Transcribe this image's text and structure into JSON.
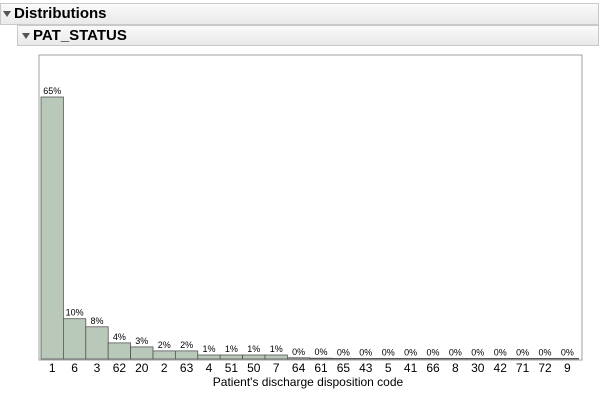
{
  "header": {
    "title": "Distributions"
  },
  "variable_header": {
    "title": "PAT_STATUS"
  },
  "icons": {
    "disclosure": "disclosure-triangle-icon"
  },
  "colors": {
    "bar_fill": "#b9c9b9",
    "bar_stroke": "#555555",
    "frame": "#a0a0a0"
  },
  "chart_data": {
    "type": "bar",
    "title": "",
    "xlabel": "Patient's discharge disposition code",
    "ylabel": "",
    "categories": [
      "1",
      "6",
      "3",
      "62",
      "20",
      "2",
      "63",
      "4",
      "51",
      "50",
      "7",
      "64",
      "61",
      "65",
      "43",
      "5",
      "41",
      "66",
      "8",
      "30",
      "42",
      "71",
      "72",
      "9"
    ],
    "values": [
      65,
      10,
      8,
      4,
      3,
      2,
      2,
      1,
      1,
      1,
      1,
      0.3,
      0.2,
      0.1,
      0.1,
      0.1,
      0.1,
      0.1,
      0.05,
      0.05,
      0.05,
      0.05,
      0.05,
      0.05
    ],
    "labels": [
      "65%",
      "10%",
      "8%",
      "4%",
      "3%",
      "2%",
      "2%",
      "1%",
      "1%",
      "1%",
      "1%",
      "0%",
      "0%",
      "0%",
      "0%",
      "0%",
      "0%",
      "0%",
      "0%",
      "0%",
      "0%",
      "0%",
      "0%",
      "0%"
    ],
    "ylim": [
      0,
      70
    ],
    "grid": false
  }
}
